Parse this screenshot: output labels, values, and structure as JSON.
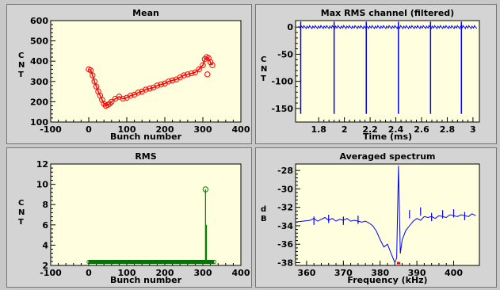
{
  "chart_data": [
    {
      "id": "mean",
      "type": "scatter",
      "title": "Mean",
      "xlabel": "Bunch number",
      "ylabel_letters": [
        "C",
        "N",
        "T"
      ],
      "xlim": [
        -100,
        400
      ],
      "ylim": [
        100,
        600
      ],
      "xticks": [
        -100,
        0,
        100,
        200,
        300,
        400
      ],
      "yticks": [
        100,
        200,
        300,
        400,
        500,
        600
      ],
      "color": "#ff0000",
      "series": [
        {
          "x": [
            0,
            5,
            10,
            15,
            20,
            25,
            30,
            35,
            40,
            45,
            50,
            55,
            60,
            70,
            80,
            90,
            100,
            110,
            120,
            130,
            140,
            150,
            160,
            170,
            180,
            190,
            200,
            210,
            220,
            230,
            240,
            250,
            260,
            270,
            280,
            290,
            300,
            305,
            310,
            315,
            320,
            325
          ],
          "y": [
            360,
            355,
            330,
            300,
            275,
            250,
            230,
            210,
            190,
            180,
            185,
            190,
            200,
            215,
            225,
            215,
            220,
            230,
            235,
            245,
            250,
            260,
            265,
            270,
            280,
            285,
            290,
            300,
            305,
            310,
            320,
            330,
            335,
            340,
            345,
            360,
            380,
            410,
            420,
            415,
            395,
            380
          ]
        }
      ],
      "outliers": [
        {
          "x": 312,
          "y": 335
        }
      ]
    },
    {
      "id": "maxrms",
      "type": "line",
      "title": "Max RMS channel (filtered)",
      "xlabel": "Time (ms)",
      "ylabel_letters": [
        "C",
        "N",
        "T"
      ],
      "xlim": [
        1.62,
        3.05
      ],
      "ylim": [
        -175,
        12
      ],
      "xticks": [
        1.8,
        2.0,
        2.2,
        2.4,
        2.6,
        2.8,
        3.0
      ],
      "xticklabels": [
        "1.8",
        "2",
        "2.2",
        "2.4",
        "2.6",
        "2.8",
        "3"
      ],
      "yticks": [
        0,
        -50,
        -100,
        -150
      ],
      "color": "#0000ff",
      "baseline": 0,
      "spikes": [
        1.66,
        1.92,
        2.17,
        2.42,
        2.67,
        2.91
      ],
      "spike_min": -160,
      "spike_max": 10
    },
    {
      "id": "rms",
      "type": "scatter",
      "title": "RMS",
      "xlabel": "Bunch number",
      "ylabel_letters": [
        "C",
        "N",
        "T"
      ],
      "xlim": [
        -100,
        400
      ],
      "ylim": [
        2,
        12
      ],
      "xticks": [
        -100,
        0,
        100,
        200,
        300,
        400
      ],
      "yticks": [
        2,
        4,
        6,
        8,
        10,
        12
      ],
      "color": "#008000",
      "x_range": [
        0,
        330
      ],
      "baseline": 2.35,
      "peak": {
        "x": 307,
        "y": 9.5
      },
      "secondary": {
        "x": 309,
        "y": 6.0
      }
    },
    {
      "id": "spectrum",
      "type": "line",
      "title": "Averaged spectrum",
      "xlabel": "Frequency (kHz)",
      "ylabel_letters": [
        "d",
        "B"
      ],
      "xlim": [
        357,
        407
      ],
      "ylim": [
        -38.3,
        -27.3
      ],
      "xticks": [
        360,
        370,
        380,
        390,
        400
      ],
      "yticks": [
        -28,
        -30,
        -32,
        -34,
        -36,
        -38
      ],
      "color": "#0000ff",
      "x": [
        357,
        359,
        361,
        362,
        363,
        364,
        365,
        366,
        367,
        368,
        369,
        370,
        371,
        372,
        373,
        374,
        375,
        376,
        377,
        378,
        379,
        380,
        381,
        382,
        383,
        384,
        384.5,
        385,
        385.5,
        386,
        387,
        388,
        389,
        390,
        391,
        392,
        393,
        394,
        395,
        396,
        397,
        398,
        399,
        400,
        401,
        402,
        403,
        404,
        405,
        406
      ],
      "y": [
        -33.6,
        -33.5,
        -33.4,
        -33.2,
        -33.5,
        -33.3,
        -33.1,
        -33.4,
        -33.2,
        -33.5,
        -33.3,
        -33.4,
        -33.2,
        -33.5,
        -33.4,
        -33.5,
        -33.6,
        -33.5,
        -33.7,
        -34.0,
        -34.6,
        -35.5,
        -36.3,
        -36.0,
        -37.0,
        -38.0,
        -37.5,
        -27.5,
        -37.0,
        -35.5,
        -34.5,
        -34.0,
        -33.5,
        -33.2,
        -33.4,
        -33.0,
        -33.1,
        -33.0,
        -33.2,
        -32.9,
        -33.0,
        -33.1,
        -32.8,
        -32.9,
        -33.0,
        -32.8,
        -32.9,
        -33.0,
        -32.7,
        -32.9
      ],
      "peaks": [
        {
          "x": 362,
          "y": -33.0
        },
        {
          "x": 366,
          "y": -32.8
        },
        {
          "x": 370,
          "y": -33.0
        },
        {
          "x": 374,
          "y": -32.9
        },
        {
          "x": 388,
          "y": -32.3
        },
        {
          "x": 391,
          "y": -32.0
        },
        {
          "x": 394,
          "y": -32.6
        },
        {
          "x": 397,
          "y": -32.3
        },
        {
          "x": 400,
          "y": -32.2
        },
        {
          "x": 403,
          "y": -32.5
        }
      ],
      "red_mark": {
        "x": 385,
        "y": -38.0
      }
    }
  ]
}
